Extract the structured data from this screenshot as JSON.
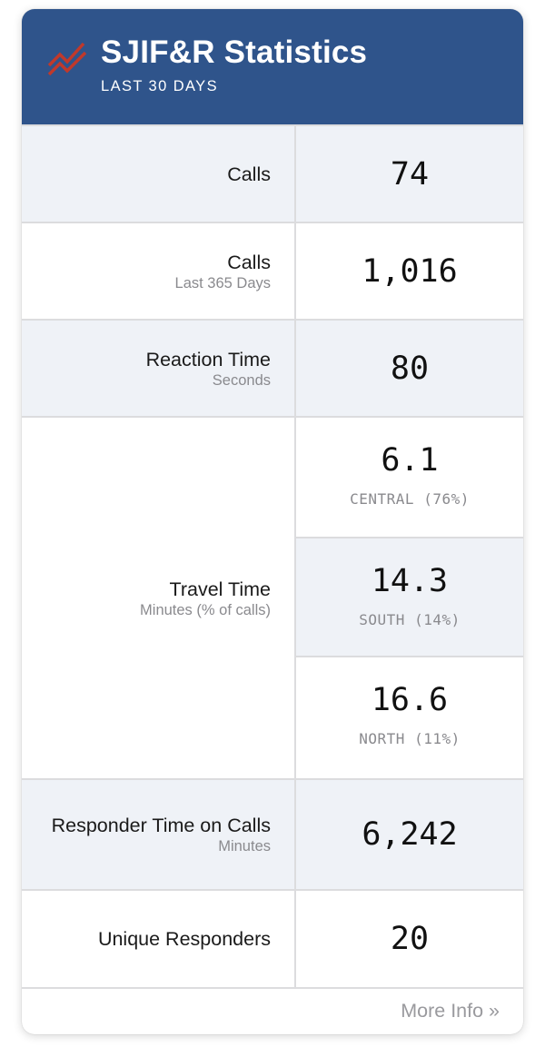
{
  "header": {
    "title": "SJIF&R Statistics",
    "subtitle": "LAST 30 DAYS",
    "icon": "trend-zigzag-icon",
    "brand_color": "#2f548b",
    "icon_color": "#c0392b"
  },
  "rows": {
    "calls": {
      "label": "Calls",
      "value": "74"
    },
    "calls_year": {
      "label": "Calls",
      "sublabel": "Last 365 Days",
      "value": "1,016"
    },
    "reaction": {
      "label": "Reaction Time",
      "sublabel": "Seconds",
      "value": "80"
    },
    "travel": {
      "label": "Travel Time",
      "sublabel": "Minutes (% of calls)",
      "regions": [
        {
          "value": "6.1",
          "caption": "CENTRAL (76%)"
        },
        {
          "value": "14.3",
          "caption": "SOUTH (14%)"
        },
        {
          "value": "16.6",
          "caption": "NORTH (11%)"
        }
      ]
    },
    "responder_time": {
      "label": "Responder Time on Calls",
      "sublabel": "Minutes",
      "value": "6,242"
    },
    "unique": {
      "label": "Unique Responders",
      "value": "20"
    }
  },
  "footer": {
    "more_info": "More Info »"
  }
}
